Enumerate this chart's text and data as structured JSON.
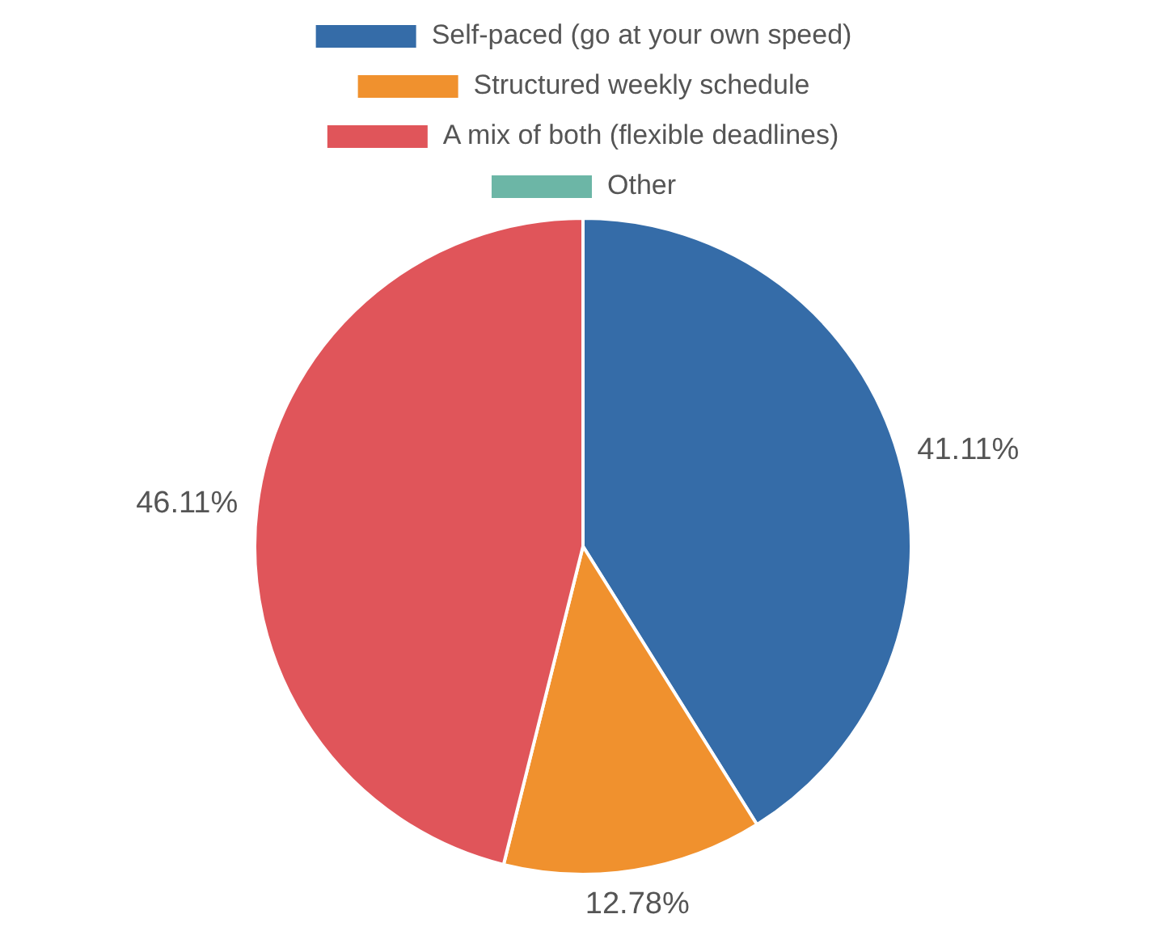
{
  "chart_data": {
    "type": "pie",
    "categories": [
      "Self-paced (go at your own speed)",
      "Structured weekly schedule",
      "A mix of both (flexible deadlines)",
      "Other"
    ],
    "values": [
      41.11,
      12.78,
      46.11,
      0
    ],
    "value_labels": [
      "41.11%",
      "12.78%",
      "46.11%",
      null
    ],
    "colors": [
      "#356ca8",
      "#f0912e",
      "#e0555a",
      "#6cb6a6"
    ],
    "legend": "top"
  }
}
